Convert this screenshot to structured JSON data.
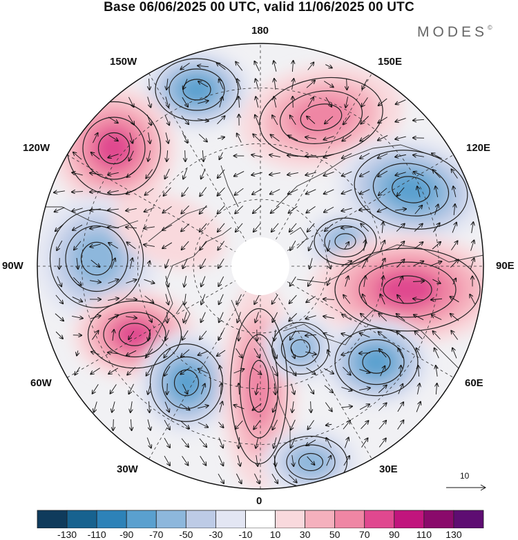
{
  "header": {
    "title": "Base 06/06/2025 00 UTC, valid 11/06/2025 00 UTC",
    "brand": "MODES",
    "brand_mark": "©"
  },
  "map": {
    "projection": "north-polar-stereographic",
    "longitude_labels": {
      "lon_180": "180",
      "lon_150e": "150E",
      "lon_120e": "120E",
      "lon_90e": "90E",
      "lon_60e": "60E",
      "lon_30e": "30E",
      "lon_0": "0",
      "lon_30w": "30W",
      "lon_60w": "60W",
      "lon_90w": "90W",
      "lon_120w": "120W",
      "lon_150w": "150W"
    },
    "graticule": "dashed",
    "anomaly_centers": [
      {
        "name": "150W trough",
        "sign": "negative"
      },
      {
        "name": "120W ridge",
        "sign": "positive"
      },
      {
        "name": "160E ridge",
        "sign": "positive"
      },
      {
        "name": "120E trough",
        "sign": "negative"
      },
      {
        "name": "100W trough",
        "sign": "negative"
      },
      {
        "name": "90E ridge",
        "sign": "positive"
      },
      {
        "name": "60W ridge",
        "sign": "positive"
      },
      {
        "name": "45W trough",
        "sign": "negative"
      },
      {
        "name": "Scandinavia ridge",
        "sign": "positive"
      },
      {
        "name": "60E trough",
        "sign": "negative"
      },
      {
        "name": "20E trough",
        "sign": "negative"
      }
    ]
  },
  "vector_scale": {
    "label": "10"
  },
  "colorbar": {
    "labels": [
      "-130",
      "-110",
      "-90",
      "-70",
      "-50",
      "-30",
      "-10",
      "10",
      "30",
      "50",
      "70",
      "90",
      "110",
      "130"
    ],
    "colors": [
      "#0f3b5c",
      "#17628f",
      "#2d82b8",
      "#5aa0cf",
      "#8db7dc",
      "#bdcbe6",
      "#e3e6f3",
      "#ffffff",
      "#f9d9dd",
      "#f5b0bd",
      "#ef86a4",
      "#e0488f",
      "#c1157d",
      "#8a0a6b",
      "#5e0d72"
    ]
  }
}
